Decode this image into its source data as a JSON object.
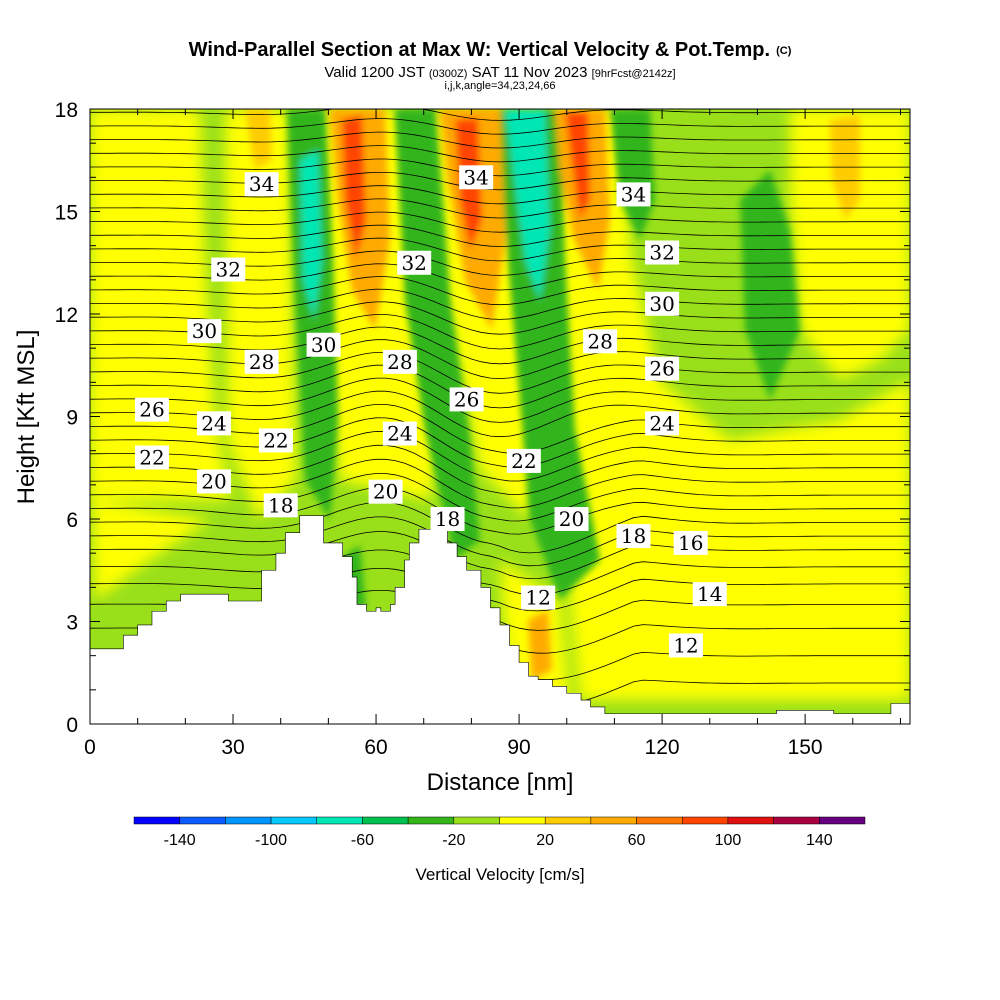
{
  "chart_data": {
    "type": "heatmap",
    "title": "Wind-Parallel Section at Max W: Vertical Velocity & Pot.Temp.",
    "title_mark": "(C)",
    "subtitle_parts": [
      "Valid 1200 JST ",
      "(0300Z)",
      " SAT 11 Nov 2023 ",
      "[9hrFcst@2142z]"
    ],
    "subtitle2": "i,j,k,angle=34,23,24,66",
    "xlabel": "Distance [nm]",
    "ylabel": "Height [Kft MSL]",
    "xlim": [
      0,
      172
    ],
    "ylim": [
      0,
      18
    ],
    "x_ticks": [
      0,
      30,
      60,
      90,
      120,
      150
    ],
    "y_ticks": [
      0,
      3,
      6,
      9,
      12,
      15,
      18
    ],
    "colorbar": {
      "title": "Vertical Velocity [cm/s]",
      "labels": [
        -140,
        -100,
        -60,
        -20,
        20,
        60,
        100,
        140
      ],
      "bins": [
        {
          "lo": -160,
          "hi": -140,
          "color": "#0000ff"
        },
        {
          "lo": -140,
          "hi": -120,
          "color": "#0a5aff"
        },
        {
          "lo": -120,
          "hi": -100,
          "color": "#0094ff"
        },
        {
          "lo": -100,
          "hi": -80,
          "color": "#00c8ff"
        },
        {
          "lo": -80,
          "hi": -60,
          "color": "#00e6b4"
        },
        {
          "lo": -60,
          "hi": -40,
          "color": "#00c050"
        },
        {
          "lo": -40,
          "hi": -20,
          "color": "#33b51a"
        },
        {
          "lo": -20,
          "hi": 0,
          "color": "#99e01a"
        },
        {
          "lo": 0,
          "hi": 20,
          "color": "#ffff00"
        },
        {
          "lo": 20,
          "hi": 40,
          "color": "#ffcc00"
        },
        {
          "lo": 40,
          "hi": 60,
          "color": "#ffaa00"
        },
        {
          "lo": 60,
          "hi": 80,
          "color": "#ff7700"
        },
        {
          "lo": 80,
          "hi": 100,
          "color": "#ff4400"
        },
        {
          "lo": 100,
          "hi": 120,
          "color": "#e01010"
        },
        {
          "lo": 120,
          "hi": 140,
          "color": "#a80040"
        },
        {
          "lo": 140,
          "hi": 160,
          "color": "#660080"
        }
      ]
    },
    "terrain": [
      [
        0,
        2.2
      ],
      [
        4,
        2.2
      ],
      [
        7,
        2.6
      ],
      [
        10,
        2.9
      ],
      [
        13,
        3.3
      ],
      [
        16,
        3.6
      ],
      [
        19,
        3.8
      ],
      [
        26,
        3.8
      ],
      [
        29,
        3.6
      ],
      [
        33,
        3.6
      ],
      [
        36,
        4.5
      ],
      [
        39,
        5.0
      ],
      [
        41,
        5.6
      ],
      [
        44,
        6.1
      ],
      [
        48,
        6.1
      ],
      [
        49,
        5.3
      ],
      [
        52,
        5.3
      ],
      [
        53,
        4.9
      ],
      [
        55,
        4.3
      ],
      [
        56,
        3.5
      ],
      [
        58,
        3.3
      ],
      [
        60,
        3.4
      ],
      [
        61,
        3.3
      ],
      [
        63,
        3.5
      ],
      [
        64,
        4.0
      ],
      [
        66,
        4.8
      ],
      [
        67,
        5.3
      ],
      [
        69,
        5.7
      ],
      [
        74,
        5.7
      ],
      [
        75,
        5.3
      ],
      [
        77,
        4.9
      ],
      [
        79,
        4.5
      ],
      [
        82,
        4.0
      ],
      [
        84,
        3.4
      ],
      [
        86,
        2.9
      ],
      [
        88,
        2.3
      ],
      [
        90,
        1.8
      ],
      [
        92,
        1.4
      ],
      [
        94,
        1.3
      ],
      [
        97,
        1.1
      ],
      [
        100,
        0.9
      ],
      [
        103,
        0.7
      ],
      [
        105,
        0.5
      ],
      [
        108,
        0.3
      ],
      [
        114,
        0.3
      ],
      [
        138,
        0.3
      ],
      [
        144,
        0.4
      ],
      [
        152,
        0.4
      ],
      [
        156,
        0.3
      ],
      [
        164,
        0.3
      ],
      [
        168,
        0.6
      ],
      [
        172,
        0.6
      ]
    ],
    "pot_temp_labels": [
      {
        "x": 36,
        "y": 15.8,
        "text": "34"
      },
      {
        "x": 81,
        "y": 16.0,
        "text": "34"
      },
      {
        "x": 114,
        "y": 15.5,
        "text": "34"
      },
      {
        "x": 29,
        "y": 13.3,
        "text": "32"
      },
      {
        "x": 68,
        "y": 13.5,
        "text": "32"
      },
      {
        "x": 120,
        "y": 13.8,
        "text": "32"
      },
      {
        "x": 24,
        "y": 11.5,
        "text": "30"
      },
      {
        "x": 49,
        "y": 11.1,
        "text": "30"
      },
      {
        "x": 120,
        "y": 12.3,
        "text": "30"
      },
      {
        "x": 36,
        "y": 10.6,
        "text": "28"
      },
      {
        "x": 65,
        "y": 10.6,
        "text": "28"
      },
      {
        "x": 107,
        "y": 11.2,
        "text": "28"
      },
      {
        "x": 13,
        "y": 9.2,
        "text": "26"
      },
      {
        "x": 79,
        "y": 9.5,
        "text": "26"
      },
      {
        "x": 120,
        "y": 10.4,
        "text": "26"
      },
      {
        "x": 26,
        "y": 8.8,
        "text": "24"
      },
      {
        "x": 65,
        "y": 8.5,
        "text": "24"
      },
      {
        "x": 120,
        "y": 8.8,
        "text": "24"
      },
      {
        "x": 13,
        "y": 7.8,
        "text": "22"
      },
      {
        "x": 39,
        "y": 8.3,
        "text": "22"
      },
      {
        "x": 91,
        "y": 7.7,
        "text": "22"
      },
      {
        "x": 26,
        "y": 7.1,
        "text": "20"
      },
      {
        "x": 62,
        "y": 6.8,
        "text": "20"
      },
      {
        "x": 101,
        "y": 6.0,
        "text": "20"
      },
      {
        "x": 40,
        "y": 6.4,
        "text": "18"
      },
      {
        "x": 75,
        "y": 6.0,
        "text": "18"
      },
      {
        "x": 114,
        "y": 5.5,
        "text": "18"
      },
      {
        "x": 126,
        "y": 5.3,
        "text": "16"
      },
      {
        "x": 130,
        "y": 3.8,
        "text": "14"
      },
      {
        "x": 94,
        "y": 3.7,
        "text": "12"
      },
      {
        "x": 125,
        "y": 2.3,
        "text": "12"
      }
    ]
  }
}
